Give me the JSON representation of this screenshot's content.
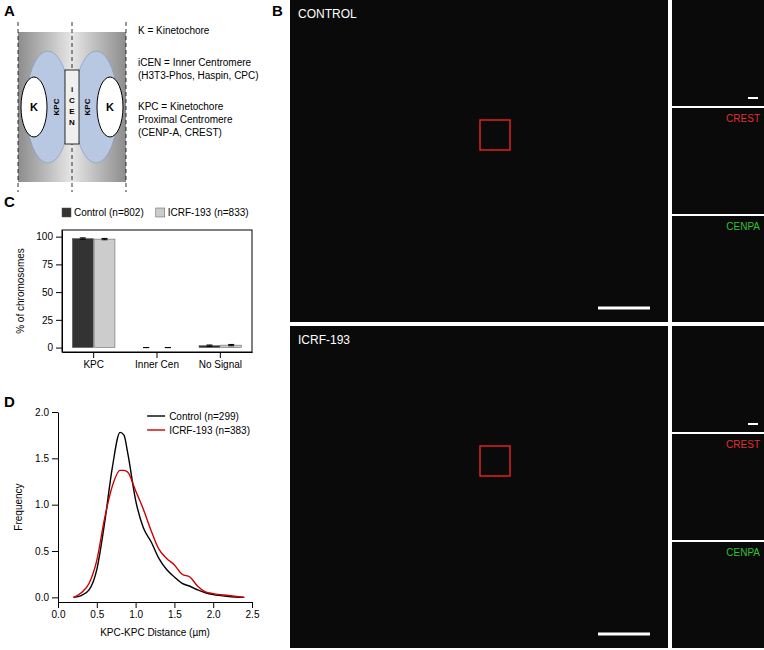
{
  "panel_letters": [
    "A",
    "B",
    "C",
    "D"
  ],
  "diagram": {
    "nodes": [
      {
        "label": "K"
      },
      {
        "label": "KPC"
      },
      {
        "label": "iCEN"
      },
      {
        "label": "KPC"
      },
      {
        "label": "K"
      }
    ],
    "key": [
      "K = Kinetochore",
      "iCEN = Inner Centromere",
      "(H3T3-Phos, Haspin, CPC)",
      "KPC = Kinetochore",
      "Proximal Centromere",
      "(CENP-A, CREST)"
    ]
  },
  "images": {
    "rows": [
      {
        "label": "CONTROL",
        "channels": [
          {
            "label": "CREST",
            "color": "#e03030"
          },
          {
            "label": "CENPA",
            "color": "#30c030"
          }
        ]
      },
      {
        "label": "ICRF-193",
        "channels": [
          {
            "label": "CREST",
            "color": "#e03030"
          },
          {
            "label": "CENPA",
            "color": "#30c030"
          }
        ]
      }
    ]
  },
  "chart_data": [
    {
      "type": "bar",
      "y_label": "% of chromosomes",
      "categories": [
        "KPC",
        "Inner Cen",
        "No Signal"
      ],
      "series": [
        {
          "name": "Control (n=802)",
          "color": "#333333",
          "values": [
            98.3,
            0,
            1.7
          ],
          "errors": [
            0.6,
            0,
            0.6
          ]
        },
        {
          "name": "ICRF-193 (n=833)",
          "color": "#cccccc",
          "values": [
            97.8,
            0,
            2.2
          ],
          "errors": [
            0.6,
            0,
            0.6
          ]
        }
      ],
      "ylim": [
        -4,
        106
      ],
      "yticks": [
        0,
        25,
        50,
        75,
        100
      ],
      "grid": false,
      "legend": "top"
    },
    {
      "type": "line",
      "x_label": "KPC-KPC Distance (µm)",
      "y_label": "Frequency",
      "x": [
        0.2,
        0.3,
        0.4,
        0.5,
        0.6,
        0.7,
        0.8,
        0.85,
        0.9,
        1.0,
        1.1,
        1.2,
        1.3,
        1.4,
        1.5,
        1.6,
        1.7,
        1.8,
        1.9,
        2.0,
        2.2,
        2.4
      ],
      "series": [
        {
          "name": "Control (n=299)",
          "color": "#000000",
          "values": [
            0.0,
            0.02,
            0.08,
            0.3,
            0.8,
            1.4,
            1.78,
            1.75,
            1.55,
            1.05,
            0.75,
            0.6,
            0.42,
            0.3,
            0.22,
            0.15,
            0.12,
            0.08,
            0.05,
            0.03,
            0.01,
            0.0
          ]
        },
        {
          "name": "ICRF-193 (n=383)",
          "color": "#cc0000",
          "values": [
            0.0,
            0.05,
            0.15,
            0.4,
            0.85,
            1.2,
            1.37,
            1.37,
            1.35,
            1.15,
            0.95,
            0.72,
            0.52,
            0.42,
            0.35,
            0.25,
            0.22,
            0.12,
            0.06,
            0.04,
            0.02,
            0.0
          ]
        }
      ],
      "xlim": [
        0,
        2.5
      ],
      "xticks": [
        {
          "value": 0,
          "label": "0.0"
        },
        {
          "value": 0.5,
          "label": "0.5"
        },
        {
          "value": 1,
          "label": "1.0"
        },
        {
          "value": 1.5,
          "label": "1.5"
        },
        {
          "value": 2,
          "label": "2.0"
        },
        {
          "value": 2.5,
          "label": "2.5"
        }
      ],
      "ylim": [
        -0.05,
        2.0
      ],
      "yticks": [
        {
          "value": 0,
          "label": "0.0"
        },
        {
          "value": 0.5,
          "label": "0.5"
        },
        {
          "value": 1,
          "label": "1.0"
        },
        {
          "value": 1.5,
          "label": "1.5"
        },
        {
          "value": 2,
          "label": "2.0"
        }
      ],
      "grid": false,
      "legend": "top-right"
    }
  ]
}
